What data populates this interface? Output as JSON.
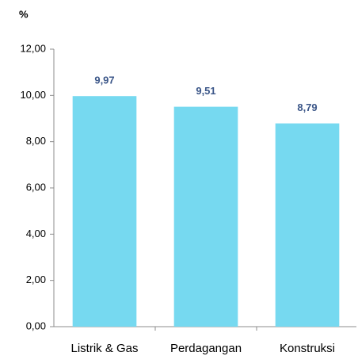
{
  "chart_data": {
    "type": "bar",
    "y_label": "%",
    "categories": [
      "Listrik & Gas",
      "Perdagangan",
      "Konstruksi"
    ],
    "values": [
      9.97,
      9.51,
      8.79
    ],
    "value_labels": [
      "9,97",
      "9,51",
      "8,79"
    ],
    "color": "#76d9f0",
    "ylim": [
      0,
      12
    ],
    "yticks": [
      {
        "value": 0,
        "label": "0,00"
      },
      {
        "value": 2,
        "label": "2,00"
      },
      {
        "value": 4,
        "label": "4,00"
      },
      {
        "value": 6,
        "label": "6,00"
      },
      {
        "value": 8,
        "label": "8,00"
      },
      {
        "value": 10,
        "label": "10,00"
      },
      {
        "value": 12,
        "label": "12,00"
      }
    ],
    "grid": false
  }
}
